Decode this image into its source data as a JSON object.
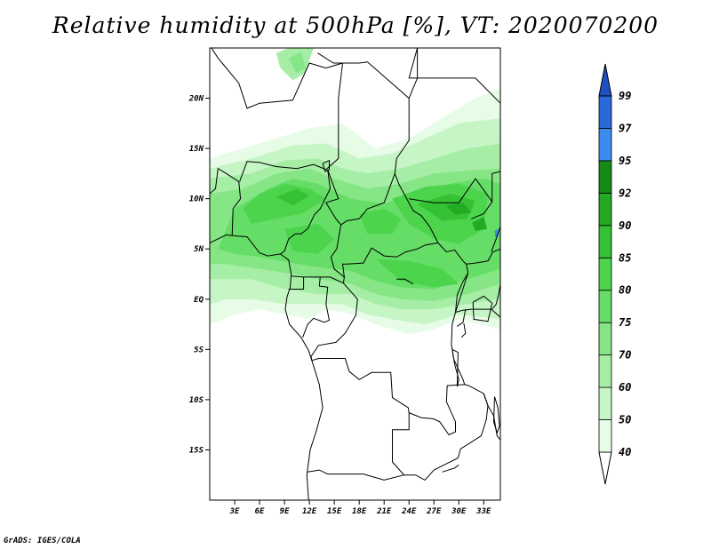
{
  "title": "Relative humidity at 500hPa [%], VT: 2020070200",
  "credit": "GrADS: IGES/COLA",
  "map": {
    "lon_range": [
      0,
      35
    ],
    "lat_range": [
      -20,
      25
    ],
    "lat_ticks": [
      {
        "value": 20,
        "label": "20N"
      },
      {
        "value": 15,
        "label": "15N"
      },
      {
        "value": 10,
        "label": "10N"
      },
      {
        "value": 5,
        "label": "5N"
      },
      {
        "value": 0,
        "label": "EQ"
      },
      {
        "value": -5,
        "label": "5S"
      },
      {
        "value": -10,
        "label": "10S"
      },
      {
        "value": -15,
        "label": "15S"
      }
    ],
    "lon_ticks": [
      {
        "value": 3,
        "label": "3E"
      },
      {
        "value": 6,
        "label": "6E"
      },
      {
        "value": 9,
        "label": "9E"
      },
      {
        "value": 12,
        "label": "12E"
      },
      {
        "value": 15,
        "label": "15E"
      },
      {
        "value": 18,
        "label": "18E"
      },
      {
        "value": 21,
        "label": "21E"
      },
      {
        "value": 24,
        "label": "24E"
      },
      {
        "value": 27,
        "label": "27E"
      },
      {
        "value": 30,
        "label": "30E"
      },
      {
        "value": 33,
        "label": "33E"
      }
    ]
  },
  "colorbar": {
    "levels": [
      {
        "label": "40",
        "color": "#e6fce6"
      },
      {
        "label": "50",
        "color": "#c6f5c6"
      },
      {
        "label": "60",
        "color": "#a6eea6"
      },
      {
        "label": "70",
        "color": "#86e686"
      },
      {
        "label": "75",
        "color": "#66dd66"
      },
      {
        "label": "80",
        "color": "#4cd44c"
      },
      {
        "label": "85",
        "color": "#34c234"
      },
      {
        "label": "90",
        "color": "#22aa22"
      },
      {
        "label": "92",
        "color": "#168a16"
      },
      {
        "label": "95",
        "color": "#3c8cf0"
      },
      {
        "label": "97",
        "color": "#2a6ad8"
      },
      {
        "label": "99",
        "color": "#1f4fc0"
      }
    ],
    "below_color": "#ffffff",
    "above_color": "#1f4fc0"
  }
}
